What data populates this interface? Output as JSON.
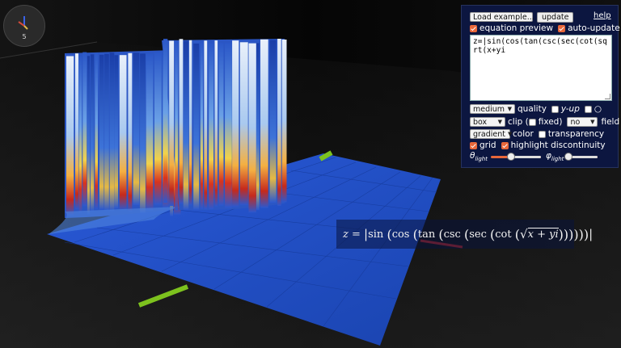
{
  "axis_widget": {
    "number": "5"
  },
  "panel": {
    "example_select": "Load example...",
    "update_button": "update",
    "help_link": "help",
    "equation_preview": {
      "label": "equation preview",
      "checked": true
    },
    "auto_update": {
      "label": "auto-update",
      "checked": true
    },
    "equation_text": "z=|sin(cos(tan(csc(sec(cot(sqrt(x+yi",
    "quality_select": "medium",
    "quality_label": "quality",
    "y_up": {
      "label": "y-up",
      "checked": false
    },
    "circle_option": {
      "label": "○",
      "checked": false
    },
    "clip_select": "box",
    "clip_label": "clip (",
    "fixed": {
      "label": "fixed)",
      "checked": false
    },
    "field_select": "no",
    "field_label": "field",
    "color_select": "gradient",
    "color_label": "color",
    "transparency": {
      "label": "transparency",
      "checked": false
    },
    "grid": {
      "label": "grid",
      "checked": true
    },
    "highlight_discontinuity": {
      "label": "highlight discontinuity",
      "checked": true
    },
    "theta_light": {
      "symbol": "θ",
      "sub": "light",
      "value": 0.4
    },
    "phi_light": {
      "symbol": "φ",
      "sub": "light",
      "value": 0.05
    }
  },
  "formula_overlay": {
    "lhs": "z",
    "fn1": "sin",
    "fn2": "cos",
    "fn3": "tan",
    "fn4": "csc",
    "fn5": "sec",
    "fn6": "cot",
    "x": "x",
    "y": "y",
    "i": "i",
    "plus": "+"
  },
  "colors": {
    "panel_bg": "#0c1640",
    "accent": "#e8673a",
    "surface_blue": "#1f4fc6",
    "axis_green": "#7dc21e",
    "axis_red": "#c0282a"
  }
}
